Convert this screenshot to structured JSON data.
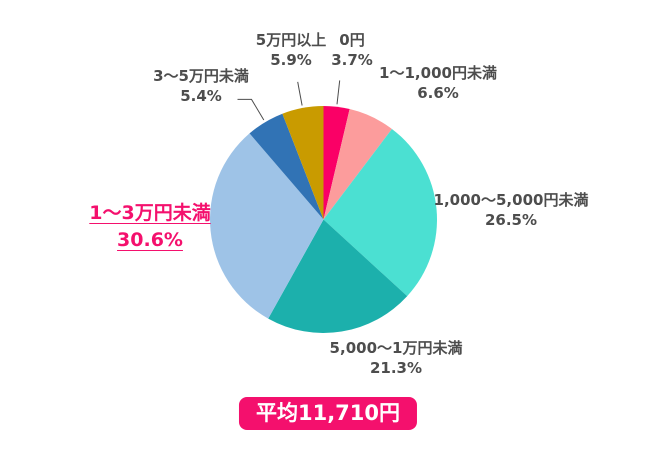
{
  "chart_data": {
    "type": "pie",
    "direction": "clockwise",
    "start_angle_deg": 0,
    "unit": "%",
    "grid": false,
    "legend_position": "labels-around-slices",
    "slices": [
      {
        "label": "0円",
        "value": 3.7,
        "pct_text": "3.7%",
        "color": "#FA0066",
        "leader": true,
        "leader_elbow": false,
        "highlight": false
      },
      {
        "label": "1〜1,000円未満",
        "value": 6.6,
        "pct_text": "6.6%",
        "color": "#FC9C9C",
        "leader": false,
        "leader_elbow": false,
        "highlight": false
      },
      {
        "label": "1,000〜5,000円未満",
        "value": 26.5,
        "pct_text": "26.5%",
        "color": "#4BE0D2",
        "leader": false,
        "leader_elbow": false,
        "highlight": false
      },
      {
        "label": "5,000〜1万円未満",
        "value": 21.3,
        "pct_text": "21.3%",
        "color": "#1CB0AC",
        "leader": false,
        "leader_elbow": false,
        "highlight": false
      },
      {
        "label": "1〜3万円未満",
        "value": 30.6,
        "pct_text": "30.6%",
        "color": "#9EC3E7",
        "leader": false,
        "leader_elbow": false,
        "highlight": true
      },
      {
        "label": "3〜5万円未満",
        "value": 5.4,
        "pct_text": "5.4%",
        "color": "#3173B5",
        "leader": true,
        "leader_elbow": true,
        "highlight": false
      },
      {
        "label": "5万円以上",
        "value": 5.9,
        "pct_text": "5.9%",
        "color": "#C99B00",
        "leader": true,
        "leader_elbow": false,
        "highlight": false
      }
    ],
    "average_badge_text": "平均11,710円",
    "colors": {
      "background": "#FFFFFF",
      "label_text": "#4D4D4D",
      "highlight_text": "#F4106D",
      "badge_bg": "#F4106D",
      "badge_text": "#FFFFFF",
      "leader_line": "#4D4D4D"
    }
  }
}
